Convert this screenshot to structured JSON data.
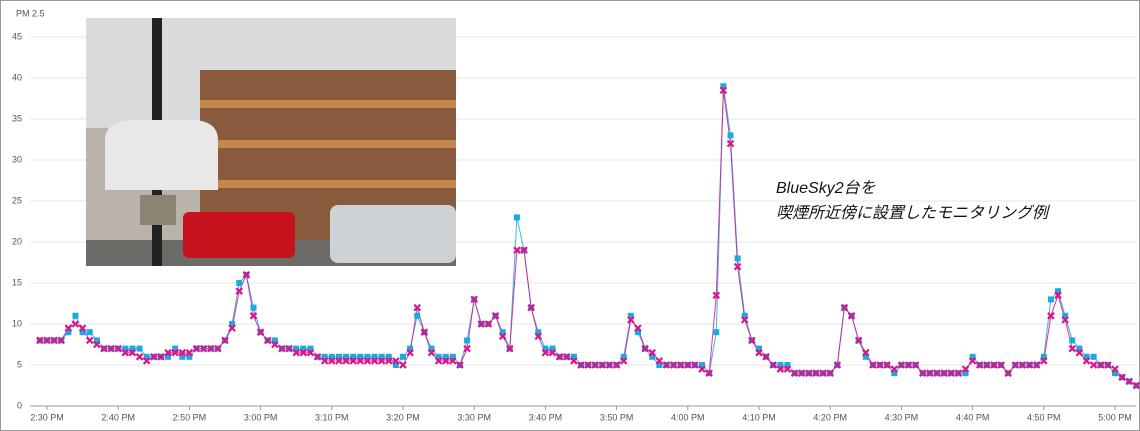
{
  "chart_data": {
    "type": "line",
    "y_label": "PM 2.5",
    "annotation": [
      "BlueSky2台を",
      "喫煙所近傍に設置したモニタリング例"
    ],
    "categories": [
      null,
      "2:30 PM",
      null,
      null,
      null,
      null,
      null,
      null,
      null,
      null,
      null,
      "2:40 PM",
      null,
      null,
      null,
      null,
      null,
      null,
      null,
      null,
      null,
      "2:50 PM",
      null,
      null,
      null,
      null,
      null,
      null,
      null,
      null,
      null,
      "3:00 PM",
      null,
      null,
      null,
      null,
      null,
      null,
      null,
      null,
      null,
      "3:10 PM",
      null,
      null,
      null,
      null,
      null,
      null,
      null,
      null,
      null,
      "3:20 PM",
      null,
      null,
      null,
      null,
      null,
      null,
      null,
      null,
      null,
      "3:30 PM",
      null,
      null,
      null,
      null,
      null,
      null,
      null,
      null,
      null,
      "3:40 PM",
      null,
      null,
      null,
      null,
      null,
      null,
      null,
      null,
      null,
      "3:50 PM",
      null,
      null,
      null,
      null,
      null,
      null,
      null,
      null,
      null,
      "4:00 PM",
      null,
      null,
      null,
      null,
      null,
      null,
      null,
      null,
      null,
      "4:10 PM",
      null,
      null,
      null,
      null,
      null,
      null,
      null,
      null,
      null,
      "4:20 PM",
      null,
      null,
      null,
      null,
      null,
      null,
      null,
      null,
      null,
      "4:30 PM",
      null,
      null,
      null,
      null,
      null,
      null,
      null,
      null,
      null,
      "4:40 PM",
      null,
      null,
      null,
      null,
      null,
      null,
      null,
      null,
      null,
      "4:50 PM",
      null,
      null,
      null,
      null,
      null,
      null,
      null,
      null,
      null,
      "5:00 PM",
      null,
      null,
      null
    ],
    "series": [
      {
        "color": "#1ba9e1",
        "marker": "square",
        "values": [
          8,
          8,
          8,
          8,
          9,
          11,
          9,
          9,
          8,
          7,
          7,
          7,
          7,
          7,
          7,
          6,
          6,
          6,
          6,
          7,
          6,
          6,
          7,
          7,
          7,
          7,
          8,
          10,
          15,
          16,
          12,
          9,
          8,
          8,
          7,
          7,
          7,
          7,
          7,
          6,
          6,
          6,
          6,
          6,
          6,
          6,
          6,
          6,
          6,
          6,
          5,
          6,
          7,
          11,
          9,
          7,
          6,
          6,
          6,
          5,
          8,
          13,
          10,
          10,
          11,
          9,
          7,
          23,
          19,
          12,
          9,
          7,
          7,
          6,
          6,
          6,
          5,
          5,
          5,
          5,
          5,
          5,
          6,
          11,
          9,
          7,
          6,
          5,
          5,
          5,
          5,
          5,
          5,
          5,
          4,
          9,
          39,
          33,
          18,
          11,
          8,
          7,
          6,
          5,
          5,
          5,
          4,
          4,
          4,
          4,
          4,
          4,
          5,
          12,
          11,
          8,
          6,
          5,
          5,
          5,
          4,
          5,
          5,
          5,
          4,
          4,
          4,
          4,
          4,
          4,
          4,
          6,
          5,
          5,
          5,
          5,
          4,
          5,
          5,
          5,
          5,
          6,
          13,
          14,
          11,
          8,
          7,
          6,
          6,
          5,
          5,
          4,
          3.5,
          3,
          2.5
        ]
      },
      {
        "color": "#d6168c",
        "marker": "x",
        "values": [
          8,
          8,
          8,
          8,
          9.5,
          10,
          9.5,
          8,
          7.5,
          7,
          7,
          7,
          6.5,
          6.5,
          6,
          5.5,
          6,
          6,
          6.5,
          6.5,
          6.5,
          6.5,
          7,
          7,
          7,
          7,
          8,
          9.5,
          14,
          16,
          11,
          9,
          8,
          7.5,
          7,
          7,
          6.5,
          6.5,
          6.5,
          6,
          5.5,
          5.5,
          5.5,
          5.5,
          5.5,
          5.5,
          5.5,
          5.5,
          5.5,
          5.5,
          5.5,
          5,
          6.5,
          12,
          9,
          6.5,
          5.5,
          5.5,
          5.5,
          5,
          7,
          13,
          10,
          10,
          11,
          8.5,
          7,
          19,
          19,
          12,
          8.5,
          6.5,
          6.5,
          6,
          6,
          5.5,
          5,
          5,
          5,
          5,
          5,
          5,
          5.5,
          10.5,
          9.5,
          7,
          6.5,
          5.5,
          5,
          5,
          5,
          5,
          5,
          4.5,
          4,
          13.5,
          38.5,
          32,
          17,
          10.5,
          8,
          6.5,
          6,
          5,
          4.5,
          4.5,
          4,
          4,
          4,
          4,
          4,
          4,
          5,
          12,
          11,
          8,
          6.5,
          5,
          5,
          5,
          4.5,
          5,
          5,
          5,
          4,
          4,
          4,
          4,
          4,
          4,
          4.5,
          5.5,
          5,
          5,
          5,
          5,
          4,
          5,
          5,
          5,
          5,
          5.5,
          11,
          13.5,
          10.5,
          7,
          6.5,
          5.5,
          5,
          5,
          5,
          4.5,
          3.5,
          3,
          2.5
        ]
      }
    ],
    "ylim": [
      0,
      47
    ],
    "yticks": [
      0,
      5,
      10,
      15,
      20,
      25,
      30,
      35,
      40,
      45
    ],
    "grid": true
  }
}
